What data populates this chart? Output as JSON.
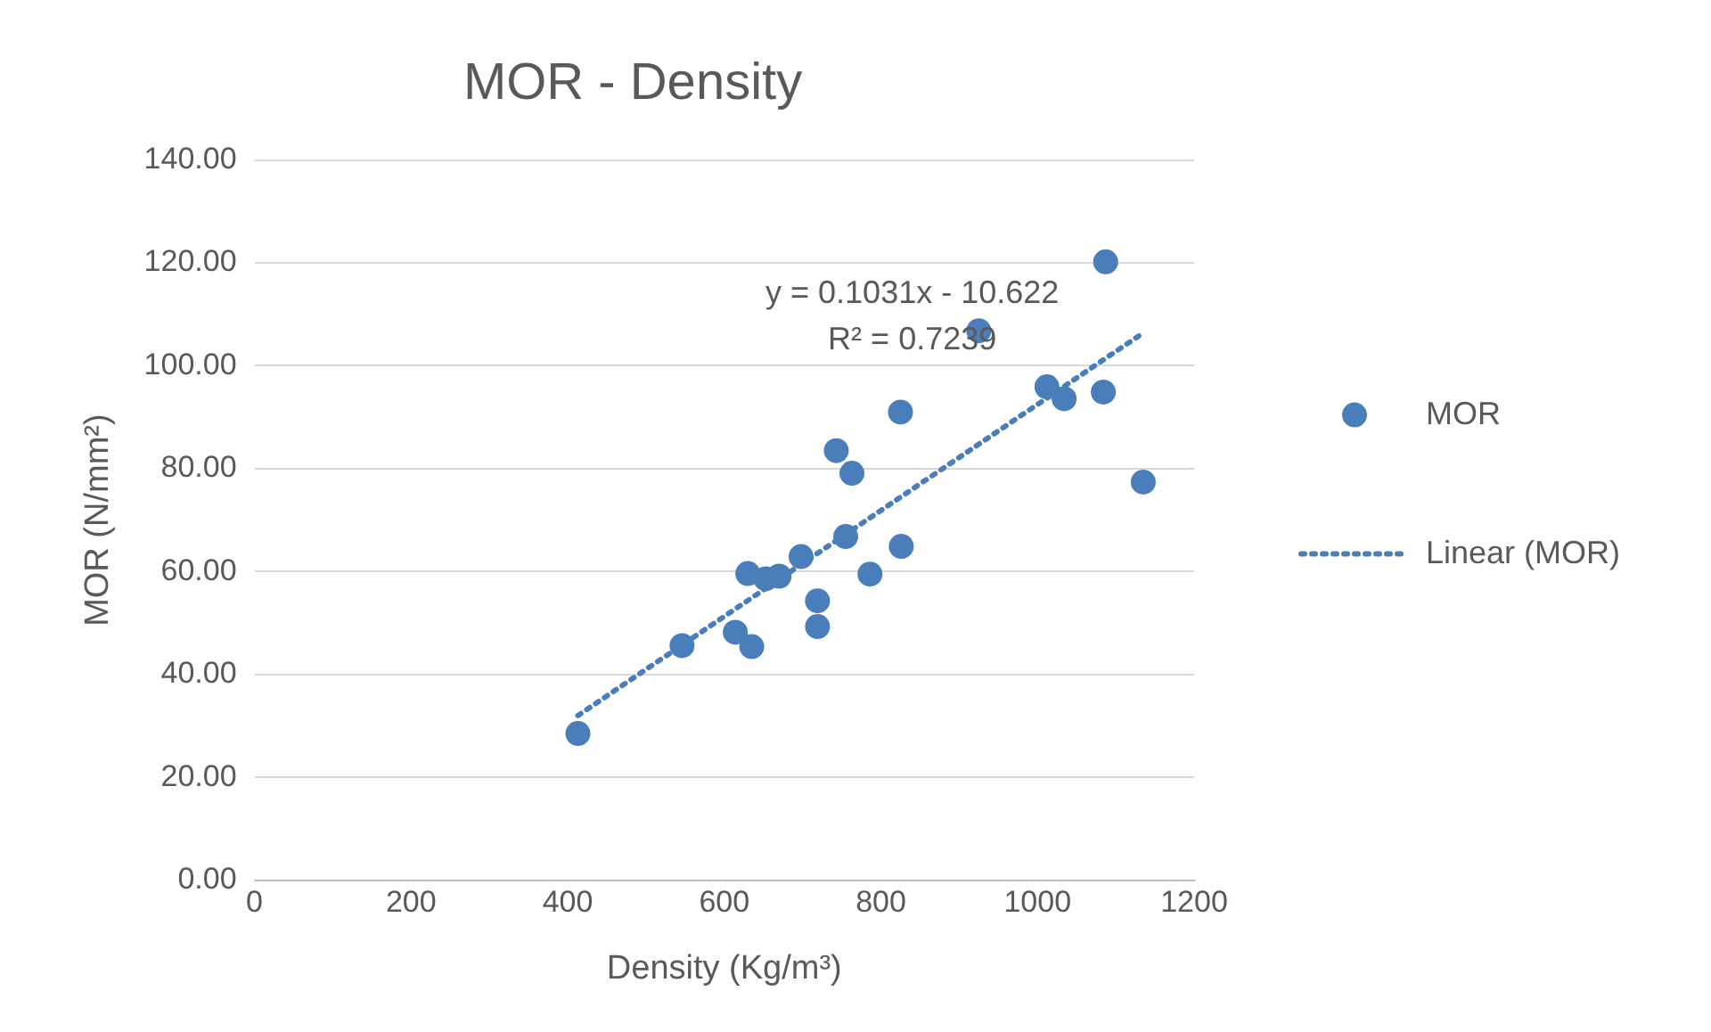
{
  "chart_data": {
    "type": "scatter",
    "title": "MOR - Density",
    "xlabel": "Density (Kg/m³)",
    "ylabel": "MOR (N/mm²)",
    "x": [
      413,
      546,
      614,
      635,
      630,
      653,
      670,
      698,
      719,
      719,
      743,
      763,
      755,
      786,
      826,
      825,
      925,
      1012,
      1034,
      1084,
      1087,
      1135
    ],
    "series": [
      {
        "name": "MOR",
        "color": "#4a7ebb",
        "values": [
          28.5,
          45.6,
          48.2,
          45.4,
          59.6,
          58.6,
          59.1,
          62.9,
          54.3,
          49.3,
          83.5,
          79.1,
          66.8,
          59.5,
          64.9,
          91.0,
          106.8,
          95.9,
          93.6,
          94.9,
          120.2,
          77.4
        ],
        "marker": "circle"
      },
      {
        "name": "Linear (MOR)",
        "type": "line",
        "color": "#4a7ebb",
        "x": [
          413,
          1135
        ],
        "values": [
          32.0,
          106.4
        ],
        "marker": "none",
        "line_style": "dotted"
      }
    ],
    "xlim": [
      0,
      1200
    ],
    "xticks": [
      0,
      200,
      400,
      600,
      800,
      1000,
      1200
    ],
    "ylim": [
      0,
      140
    ],
    "yticks": [
      {
        "value": 0,
        "label": "0.00"
      },
      {
        "value": 20,
        "label": "20.00"
      },
      {
        "value": 40,
        "label": "40.00"
      },
      {
        "value": 60,
        "label": "60.00"
      },
      {
        "value": 80,
        "label": "80.00"
      },
      {
        "value": 100,
        "label": "100.00"
      },
      {
        "value": 120,
        "label": "120.00"
      },
      {
        "value": 140,
        "label": "140.00"
      }
    ],
    "grid": "y",
    "legend": "right",
    "annotations": [
      "y = 0.1031x - 10.622",
      "R² = 0.7239"
    ]
  }
}
